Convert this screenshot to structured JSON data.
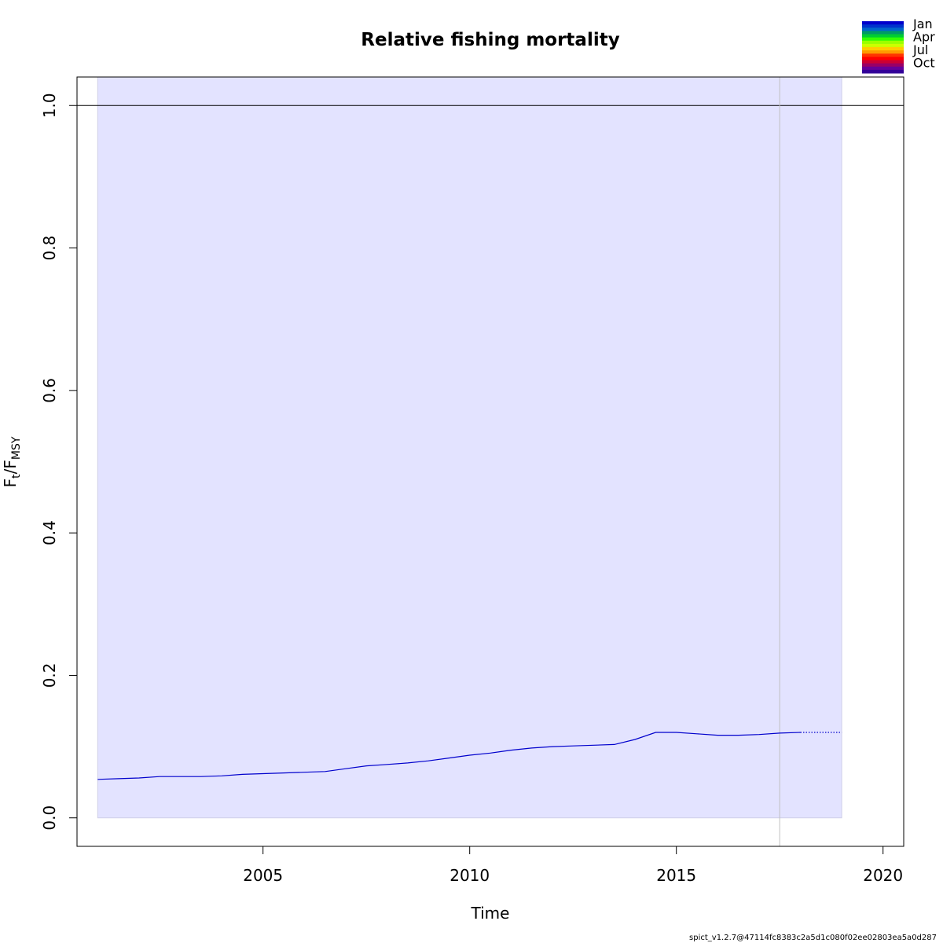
{
  "chart_data": {
    "type": "line",
    "title": "Relative fishing mortality",
    "xlabel": "Time",
    "ylabel": {
      "main": "F",
      "sub_t": "t",
      "slash": "/",
      "main2": "F",
      "sub_msy": "MSY"
    },
    "xlim": [
      2000.5,
      2020.5
    ],
    "ylim": [
      -0.04,
      1.04
    ],
    "x_ticks": [
      2005,
      2010,
      2015,
      2020
    ],
    "x_tick_labels": [
      "2005",
      "2010",
      "2015",
      "2020"
    ],
    "y_ticks": [
      0.0,
      0.2,
      0.4,
      0.6,
      0.8,
      1.0
    ],
    "y_tick_labels": [
      "0.0",
      "0.2",
      "0.4",
      "0.6",
      "0.8",
      "1.0"
    ],
    "reference_line_y": 1.0,
    "vertical_line_x": 2017.5,
    "ci_band": {
      "x": [
        2001.0,
        2019.0
      ],
      "lower": 0.0,
      "upper": 1.04
    },
    "series": [
      {
        "style": "solid",
        "x": [
          2001.0,
          2001.5,
          2002.0,
          2002.5,
          2003.0,
          2003.5,
          2004.0,
          2004.5,
          2005.0,
          2005.5,
          2006.0,
          2006.5,
          2007.0,
          2007.5,
          2008.0,
          2008.5,
          2009.0,
          2009.5,
          2010.0,
          2010.5,
          2011.0,
          2011.5,
          2012.0,
          2012.5,
          2013.0,
          2013.5,
          2014.0,
          2014.5,
          2015.0,
          2015.5,
          2016.0,
          2016.5,
          2017.0,
          2017.5,
          2018.0
        ],
        "y": [
          0.054,
          0.055,
          0.056,
          0.058,
          0.058,
          0.058,
          0.059,
          0.061,
          0.062,
          0.063,
          0.064,
          0.065,
          0.069,
          0.073,
          0.075,
          0.077,
          0.08,
          0.084,
          0.088,
          0.091,
          0.095,
          0.098,
          0.1,
          0.101,
          0.102,
          0.103,
          0.11,
          0.12,
          0.12,
          0.118,
          0.116,
          0.116,
          0.117,
          0.119,
          0.12
        ]
      },
      {
        "style": "dotted",
        "x": [
          2018.0,
          2019.0
        ],
        "y": [
          0.12,
          0.12
        ]
      }
    ],
    "legend": {
      "position": "top-right",
      "labels": [
        "Jan",
        "Apr",
        "Jul",
        "Oct"
      ],
      "colors": [
        "#0000cc",
        "#0033cc",
        "#0066cc",
        "#009966",
        "#00cc33",
        "#33ff00",
        "#99ff00",
        "#ccff00",
        "#ffcc00",
        "#ff9900",
        "#ff3300",
        "#ff0000",
        "#cc0033",
        "#990066",
        "#660099",
        "#330099"
      ]
    },
    "colors": {
      "line": "#0000cc",
      "band": "#e3e3ff",
      "vline": "#c0c0c0"
    }
  },
  "footer": "spict_v1.2.7@47114fc8383c2a5d1c080f02ee02803ea5a0d287"
}
